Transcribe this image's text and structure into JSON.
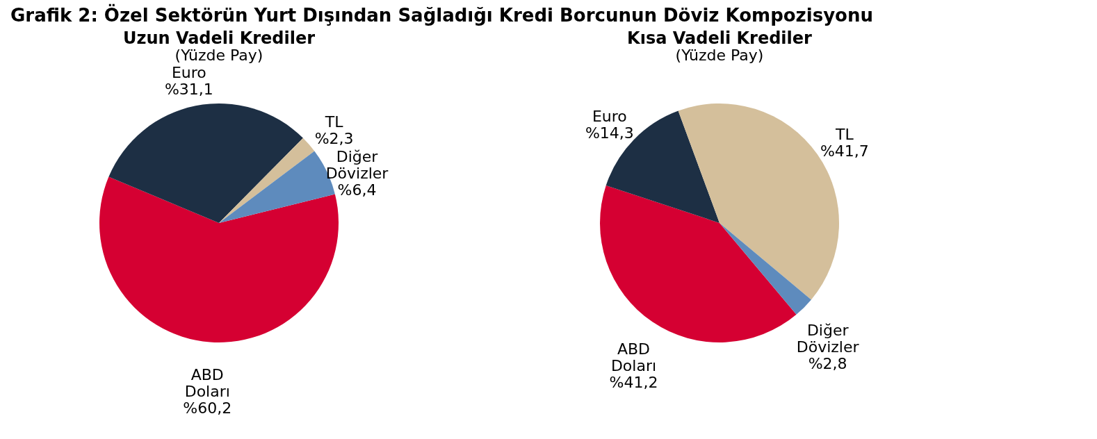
{
  "chart_data": [
    {
      "type": "pie",
      "title": "Uzun Vadeli Krediler",
      "subtitle": "(Yüzde Pay)",
      "annotations": [
        "Grafik 2: Özel Sektörün Yurt Dışından Sağladığı Kredi Borcunun Döviz Kompozisyonu"
      ],
      "categories": [
        "ABD Doları",
        "Euro",
        "TL",
        "Diğer Dövizler"
      ],
      "values": [
        60.2,
        31.1,
        2.3,
        6.4
      ],
      "colors": [
        "#d50032",
        "#1d2f44",
        "#d4bf9b",
        "#5e8bbd"
      ],
      "value_labels": [
        "%60,2",
        "%31,1",
        "%2,3",
        "%6,4"
      ]
    },
    {
      "type": "pie",
      "title": "Kısa Vadeli Krediler",
      "subtitle": "(Yüzde Pay)",
      "categories": [
        "ABD Doları",
        "Euro",
        "TL",
        "Diğer Dövizler"
      ],
      "values": [
        41.2,
        14.3,
        41.7,
        2.8
      ],
      "colors": [
        "#d50032",
        "#1d2f44",
        "#d4bf9b",
        "#5e8bbd"
      ],
      "value_labels": [
        "%41,2",
        "%14,3",
        "%41,7",
        "%2,8"
      ]
    }
  ]
}
